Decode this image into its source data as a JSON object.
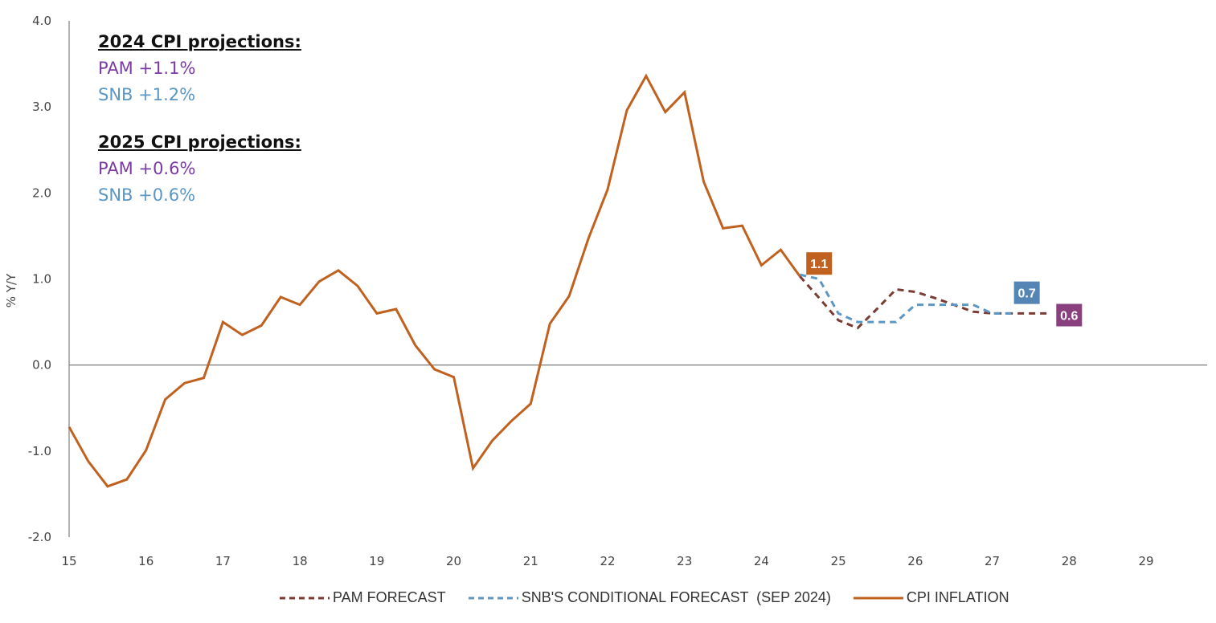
{
  "chart_data": {
    "type": "line",
    "title": "",
    "xlabel": "",
    "ylabel": "% Y/Y",
    "ylim": [
      -2.0,
      4.0
    ],
    "xlim": [
      15,
      29.8
    ],
    "yticks": [
      "4.0",
      "3.0",
      "2.0",
      "1.0",
      "0.0",
      "-1.0",
      "-2.0"
    ],
    "ytick_values": [
      4,
      3,
      2,
      1,
      0,
      -1,
      -2
    ],
    "xticks": [
      "15",
      "16",
      "17",
      "18",
      "19",
      "20",
      "21",
      "22",
      "23",
      "24",
      "25",
      "26",
      "27",
      "28",
      "29"
    ],
    "xtick_values": [
      15,
      16,
      17,
      18,
      19,
      20,
      21,
      22,
      23,
      24,
      25,
      26,
      27,
      28,
      29
    ],
    "grid": false,
    "zero_line": true,
    "legend_position": "bottom",
    "series": [
      {
        "name": "CPI INFLATION",
        "color": "#c0611f",
        "style": "solid",
        "x": [
          15.0,
          15.25,
          15.5,
          15.75,
          16.0,
          16.25,
          16.5,
          16.75,
          17.0,
          17.25,
          17.5,
          17.75,
          18.0,
          18.25,
          18.5,
          18.75,
          19.0,
          19.25,
          19.5,
          19.75,
          20.0,
          20.25,
          20.5,
          20.75,
          21.0,
          21.25,
          21.5,
          21.75,
          22.0,
          22.25,
          22.5,
          22.75,
          23.0,
          23.25,
          23.5,
          23.75,
          24.0,
          24.25,
          24.5
        ],
        "values": [
          -0.72,
          -1.12,
          -1.41,
          -1.33,
          -0.99,
          -0.4,
          -0.21,
          -0.15,
          0.5,
          0.35,
          0.46,
          0.79,
          0.7,
          0.97,
          1.1,
          0.92,
          0.6,
          0.65,
          0.23,
          -0.05,
          -0.14,
          -1.2,
          -0.88,
          -0.65,
          -0.45,
          0.48,
          0.8,
          1.47,
          2.04,
          2.96,
          3.36,
          2.94,
          3.17,
          2.13,
          1.59,
          1.62,
          1.16,
          1.34,
          1.03
        ]
      },
      {
        "name": "PAM FORECAST",
        "color": "#7a3b34",
        "style": "dashed",
        "x": [
          24.5,
          24.75,
          25.0,
          25.25,
          25.5,
          25.75,
          26.0,
          26.25,
          26.5,
          26.75,
          27.0,
          27.25,
          27.5,
          27.75
        ],
        "values": [
          1.03,
          0.78,
          0.52,
          0.43,
          0.65,
          0.88,
          0.85,
          0.78,
          0.7,
          0.62,
          0.6,
          0.6,
          0.6,
          0.6
        ]
      },
      {
        "name": "SNB'S CONDITIONAL FORECAST (SEP 2024)",
        "color": "#5a97c4",
        "style": "dashed",
        "x": [
          24.5,
          24.75,
          25.0,
          25.25,
          25.5,
          25.75,
          26.0,
          26.25,
          26.5,
          26.75,
          27.0,
          27.25
        ],
        "values": [
          1.05,
          1.0,
          0.6,
          0.5,
          0.5,
          0.5,
          0.7,
          0.7,
          0.7,
          0.7,
          0.6,
          0.6
        ]
      }
    ],
    "data_labels": [
      {
        "text": "1.1",
        "x": 24.75,
        "y": 1.18,
        "color": "#c0611f"
      },
      {
        "text": "0.7",
        "x": 27.45,
        "y": 0.84,
        "color": "#5485b5"
      },
      {
        "text": "0.6",
        "x": 28.0,
        "y": 0.58,
        "color": "#8a3f7f"
      }
    ],
    "annotations": {
      "block_2024": {
        "header": "2024 CPI projections:",
        "pam": "PAM +1.1%",
        "snb": "SNB +1.2%"
      },
      "block_2025": {
        "header": "2025 CPI projections:",
        "pam": "PAM +0.6%",
        "snb": "SNB +0.6%"
      }
    }
  },
  "legend": {
    "items": [
      {
        "label": "PAM FORECAST",
        "color": "#7a3b34",
        "style": "dashed"
      },
      {
        "label": "SNB'S CONDITIONAL FORECAST  (SEP 2024)",
        "color": "#5a97c4",
        "style": "dashed"
      },
      {
        "label": "CPI INFLATION",
        "color": "#c0611f",
        "style": "solid"
      }
    ]
  }
}
